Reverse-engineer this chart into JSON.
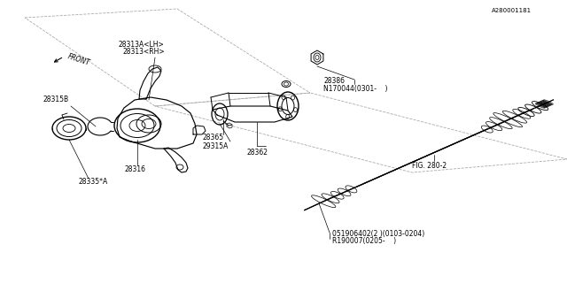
{
  "bg_color": "#ffffff",
  "lc": "#000000",
  "gray": "#888888",
  "figsize": [
    6.4,
    3.2
  ],
  "dpi": 100,
  "labels": {
    "R1_line1": "R190007(0205-    )",
    "R1_line2": "051906402(2 )(0103-0204)",
    "FIG": "FIG. 280-2",
    "p28335": "28335*A",
    "p28316": "28316",
    "p28315B": "28315B",
    "p28362": "28362",
    "p29315A": "29315A",
    "p28365": "28365",
    "p28313": "28313<RH>",
    "p28313A": "28313A<LH>",
    "N170044": "N170044<0301-    >",
    "p28386": "28386",
    "FRONT": "FRONT",
    "watermark": "A280001181"
  }
}
